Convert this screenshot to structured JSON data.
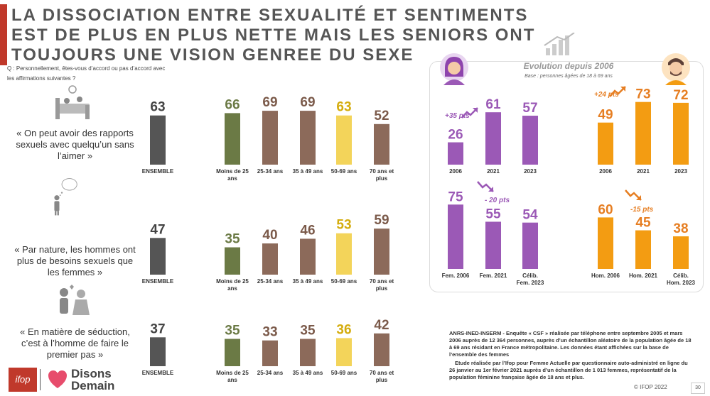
{
  "title": "LA DISSOCIATION ENTRE SEXUALITÉ ET SENTIMENTS EST DE PLUS EN PLUS NETTE MAIS LES SENIORS ONT TOUJOURS UNE VISION GENREE DU SEXE",
  "question": "Q : Personnellement, êtes-vous d’accord ou pas d’accord avec les affirmations suivantes ?",
  "statements": [
    "« On peut avoir des rapports sexuels avec quelqu’un sans l’aimer »",
    "« Par nature, les hommes ont plus de besoins sexuels que les femmes »",
    "« En matière de séduction, c’est à l’homme de faire le premier pas »"
  ],
  "evolution": {
    "title": "Evolution depuis 2006",
    "base": "Base : personnes âgées de 18 à 69 ans",
    "badges": [
      "+35 pts",
      "+24 pts",
      "- 20 pts",
      "-15 pts"
    ]
  },
  "note": {
    "p1": "ANRS-INED-INSERM - Enquête « CSF » réalisée par téléphone entre septembre 2005 et mars 2006 auprès de 12 364 personnes, auprès d’un échantillon aléatoire de la population âgée de 18 à 69 ans résidant en France métropolitaine. Les données étant affichées sur la base de l’ensemble des femmes",
    "p2": "Etude réalisée par l’Ifop pour Femme Actuelle par questionnaire auto-administré en ligne du 26 janvier au 1er février 2021 auprès d’un échantillon de 1 013 femmes, représentatif de la population féminine française âgée de 18 ans et plus."
  },
  "footer": "© IFOP 2022",
  "page_number": "30",
  "logos": {
    "ifop": "ifop",
    "disons_demain": "Disons Demain"
  },
  "colors": {
    "ensemble": "#555555",
    "moins25": "#6b7a45",
    "age25_34": "#8c6a5a",
    "age35_49": "#8c6a5a",
    "age50_69": "#f3d45a",
    "age70plus": "#8c6a5a",
    "women": "#9b59b6",
    "men": "#f39c12",
    "accent_red": "#c0392b"
  },
  "chart_data": [
    {
      "type": "bar",
      "statement": "« On peut avoir des rapports sexuels avec quelqu’un sans l’aimer »",
      "categories": [
        "ENSEMBLE",
        "Moins de 25 ans",
        "25-34 ans",
        "35 à 49 ans",
        "50-69 ans",
        "70 ans et plus"
      ],
      "values": [
        63,
        66,
        69,
        69,
        63,
        52
      ]
    },
    {
      "type": "bar",
      "statement": "« Par nature, les hommes ont plus de besoins sexuels que les femmes »",
      "categories": [
        "ENSEMBLE",
        "Moins de 25 ans",
        "25-34 ans",
        "35 à 49 ans",
        "50-69 ans",
        "70 ans et plus"
      ],
      "values": [
        47,
        35,
        40,
        46,
        53,
        59
      ]
    },
    {
      "type": "bar",
      "statement": "« En matière de séduction, c’est à l’homme de faire le premier pas »",
      "categories": [
        "ENSEMBLE",
        "Moins de 25 ans",
        "25-34 ans",
        "35 à 49 ans",
        "50-69 ans",
        "70 ans et plus"
      ],
      "values": [
        37,
        35,
        33,
        35,
        36,
        42
      ]
    },
    {
      "type": "bar",
      "group": "women",
      "categories": [
        "2006",
        "2021",
        "2023"
      ],
      "values": [
        26,
        61,
        57
      ]
    },
    {
      "type": "bar",
      "group": "men",
      "categories": [
        "2006",
        "2021",
        "2023"
      ],
      "values": [
        49,
        73,
        72
      ]
    },
    {
      "type": "bar",
      "group": "women",
      "categories": [
        "Fem. 2006",
        "Fem. 2021",
        "Célib. Fem. 2023"
      ],
      "values": [
        75,
        55,
        54
      ]
    },
    {
      "type": "bar",
      "group": "men",
      "categories": [
        "Hom. 2006",
        "Hom. 2021",
        "Célib. Hom. 2023"
      ],
      "values": [
        60,
        45,
        38
      ]
    }
  ]
}
